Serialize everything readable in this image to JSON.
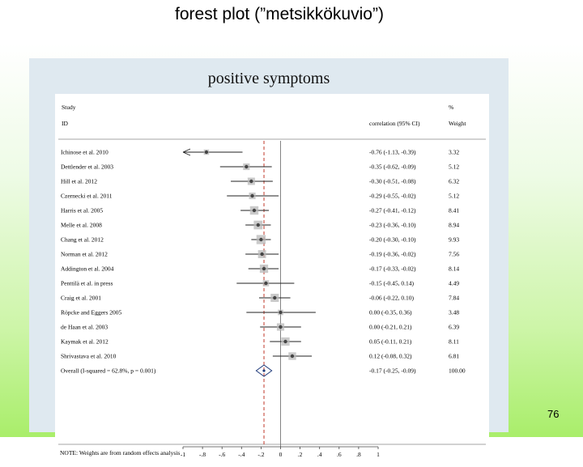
{
  "slide": {
    "title": "forest plot (”metsikkökuvio”)",
    "page_number": "76"
  },
  "chart_data": {
    "type": "forest",
    "title": "positive symptoms",
    "header": {
      "study_col": "Study",
      "id_col": "ID",
      "effect_col": "correlation (95% CI)",
      "pct_col": "%",
      "weight_col": "Weight"
    },
    "studies": [
      {
        "name": "Ichinose et al. 2010",
        "es": -0.76,
        "lo": -1.13,
        "hi": -0.39,
        "ci_text": "-0.76 (-1.13, -0.39)",
        "weight": "3.32"
      },
      {
        "name": "Dettlender et al. 2003",
        "es": -0.35,
        "lo": -0.62,
        "hi": -0.09,
        "ci_text": "-0.35 (-0.62, -0.09)",
        "weight": "5.12"
      },
      {
        "name": "Hill et al. 2012",
        "es": -0.3,
        "lo": -0.51,
        "hi": -0.08,
        "ci_text": "-0.30 (-0.51, -0.08)",
        "weight": "6.32"
      },
      {
        "name": "Czernecki et al. 2011",
        "es": -0.29,
        "lo": -0.55,
        "hi": -0.02,
        "ci_text": "-0.29 (-0.55, -0.02)",
        "weight": "5.12"
      },
      {
        "name": "Harris et al. 2005",
        "es": -0.27,
        "lo": -0.41,
        "hi": -0.12,
        "ci_text": "-0.27 (-0.41, -0.12)",
        "weight": "8.41"
      },
      {
        "name": "Melle et al. 2008",
        "es": -0.23,
        "lo": -0.36,
        "hi": -0.1,
        "ci_text": "-0.23 (-0.36, -0.10)",
        "weight": "8.94"
      },
      {
        "name": "Chang et al. 2012",
        "es": -0.2,
        "lo": -0.3,
        "hi": -0.1,
        "ci_text": "-0.20 (-0.30, -0.10)",
        "weight": "9.93"
      },
      {
        "name": "Norman et al. 2012",
        "es": -0.19,
        "lo": -0.36,
        "hi": -0.02,
        "ci_text": "-0.19 (-0.36, -0.02)",
        "weight": "7.56"
      },
      {
        "name": "Addington et al. 2004",
        "es": -0.17,
        "lo": -0.33,
        "hi": -0.02,
        "ci_text": "-0.17 (-0.33, -0.02)",
        "weight": "8.14"
      },
      {
        "name": "Penttilä et al. in press",
        "es": -0.15,
        "lo": -0.45,
        "hi": 0.14,
        "ci_text": "-0.15 (-0.45, 0.14)",
        "weight": "4.49"
      },
      {
        "name": "Craig et al. 2001",
        "es": -0.06,
        "lo": -0.22,
        "hi": 0.1,
        "ci_text": "-0.06 (-0.22, 0.10)",
        "weight": "7.84"
      },
      {
        "name": "Röpcke and Eggers 2005",
        "es": 0.0,
        "lo": -0.35,
        "hi": 0.36,
        "ci_text": "0.00 (-0.35, 0.36)",
        "weight": "3.48"
      },
      {
        "name": "de Haan et al. 2003",
        "es": 0.0,
        "lo": -0.21,
        "hi": 0.21,
        "ci_text": "0.00 (-0.21, 0.21)",
        "weight": "6.39"
      },
      {
        "name": "Kaymak et al. 2012",
        "es": 0.05,
        "lo": -0.11,
        "hi": 0.21,
        "ci_text": "0.05 (-0.11, 0.21)",
        "weight": "8.11"
      },
      {
        "name": "Shrivastava et al. 2010",
        "es": 0.12,
        "lo": -0.08,
        "hi": 0.32,
        "ci_text": "0.12 (-0.08, 0.32)",
        "weight": "6.81"
      }
    ],
    "overall": {
      "label": "Overall  (I-squared = 62.8%, p = 0.001)",
      "es": -0.17,
      "lo": -0.25,
      "hi": -0.09,
      "ci_text": "-0.17 (-0.25, -0.09)",
      "weight": "100.00"
    },
    "note": "NOTE: Weights are from random effects analysis",
    "x_ticks": [
      -1,
      -0.8,
      -0.6,
      -0.4,
      -0.2,
      0,
      0.2,
      0.4,
      0.6,
      0.8,
      1
    ],
    "x_tick_labels": [
      "-1",
      "-.8",
      "-.6",
      "-.4",
      "-.2",
      "0",
      ".2",
      ".4",
      ".6",
      ".8",
      "1"
    ],
    "xlim": [
      -1,
      1
    ],
    "null_line": 0,
    "pooled_line": -0.17,
    "colors": {
      "pooled_line": "#c0392b",
      "marker": "#444444",
      "weight_box": "#b8b8b8",
      "diamond": "#1f3a7a"
    }
  }
}
